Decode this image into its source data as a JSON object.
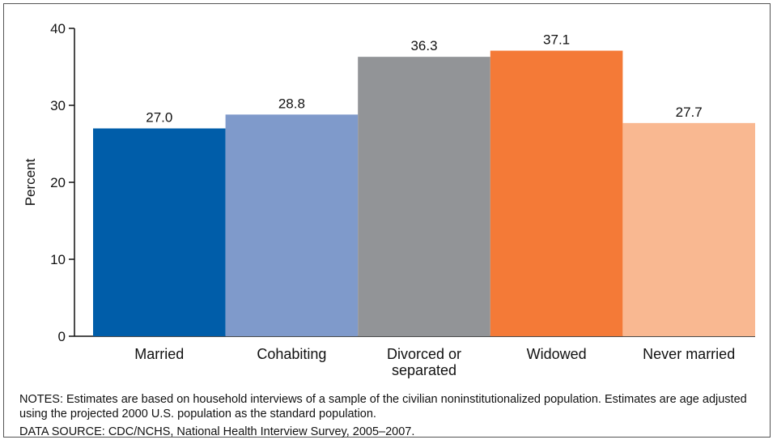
{
  "chart_data": {
    "type": "bar",
    "categories": [
      [
        "Married"
      ],
      [
        "Cohabiting"
      ],
      [
        "Divorced or",
        "separated"
      ],
      [
        "Widowed"
      ],
      [
        "Never married"
      ]
    ],
    "values": [
      27.0,
      28.8,
      36.3,
      37.1,
      27.7
    ],
    "value_labels": [
      "27.0",
      "28.8",
      "36.3",
      "37.1",
      "27.7"
    ],
    "colors": [
      "#005da9",
      "#7f9acb",
      "#929497",
      "#f47a37",
      "#f9b891"
    ],
    "ylabel": "Percent",
    "ylim": [
      0,
      40
    ],
    "yticks": [
      0,
      10,
      20,
      30,
      40
    ],
    "grid": false
  },
  "notes": {
    "line1": "NOTES: Estimates are based on household interviews of a sample of the civilian noninstitutionalized population. Estimates are age adjusted using the projected 2000 U.S. population as the standard population.",
    "source": "DATA SOURCE: CDC/NCHS, National Health Interview Survey, 2005–2007."
  }
}
